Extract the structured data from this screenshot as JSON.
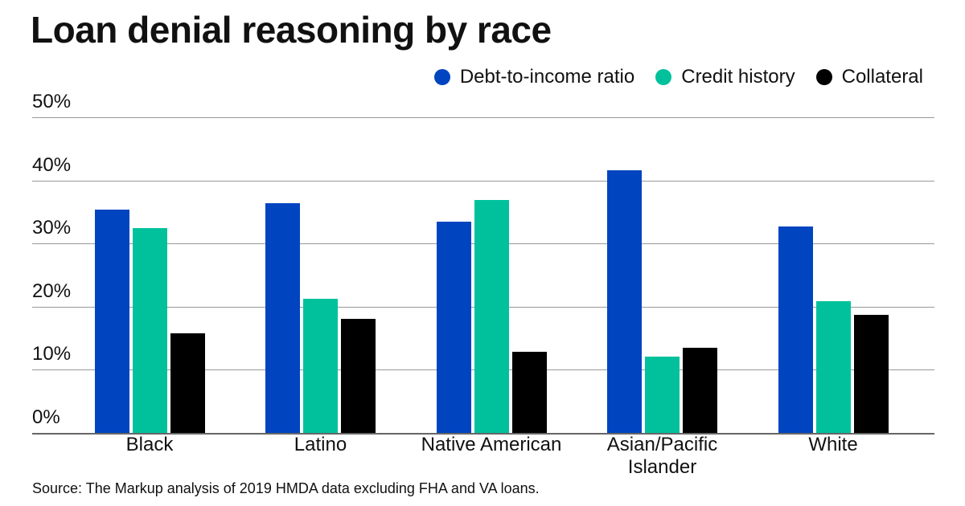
{
  "chart_data": {
    "type": "bar",
    "title": "Loan denial reasoning by race",
    "xlabel": "",
    "ylabel": "",
    "ylim": [
      0,
      50
    ],
    "yticks": [
      0,
      10,
      20,
      30,
      40,
      50
    ],
    "ytick_labels": [
      "0%",
      "10%",
      "20%",
      "30%",
      "40%",
      "50%"
    ],
    "grid": true,
    "legend_position": "top-right",
    "categories": [
      "Black",
      "Latino",
      "Native American",
      "Asian/Pacific Islander",
      "White"
    ],
    "series": [
      {
        "name": "Debt-to-income ratio",
        "color": "#0044c0",
        "values": [
          35.4,
          36.4,
          33.5,
          41.6,
          32.7
        ]
      },
      {
        "name": "Credit history",
        "color": "#00c19c",
        "values": [
          32.4,
          21.2,
          36.9,
          12.1,
          20.9
        ]
      },
      {
        "name": "Collateral",
        "color": "#000000",
        "values": [
          15.8,
          18.1,
          12.8,
          13.5,
          18.7
        ]
      }
    ]
  },
  "source": "Source: The Markup analysis of 2019 HMDA data excluding FHA and VA loans."
}
